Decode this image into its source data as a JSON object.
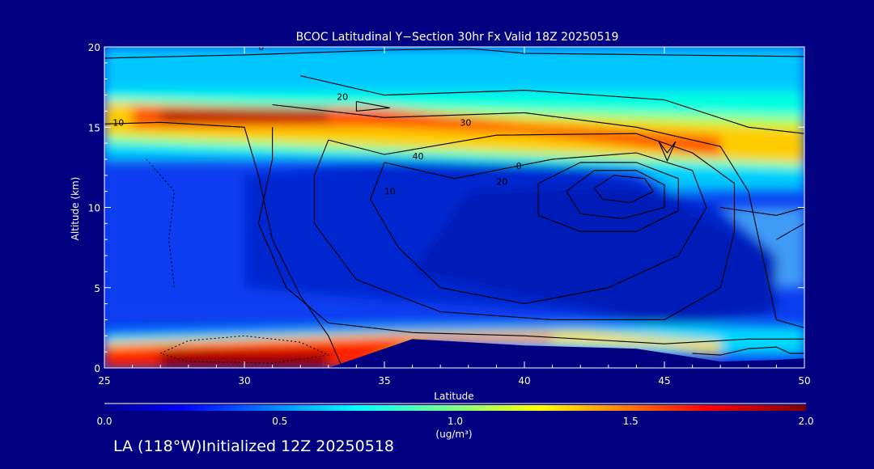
{
  "chart_data": {
    "type": "heatmap",
    "title": "BCOC Latitudinal Y−Section 30hr  Fx Valid 18Z 20250519",
    "xlabel": "Latitude",
    "ylabel": "Altitude (km)",
    "xlim": [
      25,
      50
    ],
    "ylim": [
      0,
      20
    ],
    "x_ticks": [
      25,
      30,
      35,
      40,
      45,
      50
    ],
    "y_ticks": [
      0,
      5,
      10,
      15,
      20
    ],
    "colorbar": {
      "range": [
        0.0,
        2.0
      ],
      "tick_labels": [
        "0.0",
        "0.5",
        "1.0",
        "1.5",
        "2.0"
      ],
      "unit": "(ug/m³)",
      "colormap": "jet"
    },
    "features": {
      "upper_plume": {
        "peak_altitude_km": 15.5,
        "peak_lat_range": [
          27,
          35
        ],
        "max_value": 2.0
      },
      "surface_plume": {
        "peak_altitude_km": 0.8,
        "lat_range": [
          25,
          34
        ],
        "max_value": 2.0
      },
      "mid_troposphere_min": {
        "lat_range": [
          30,
          48
        ],
        "alt_range_km": [
          3,
          13
        ],
        "value": 0.2
      }
    },
    "contours": {
      "variable": "wind speed",
      "labels": [
        "0",
        "10",
        "20",
        "30",
        "40",
        "0",
        "20",
        "10"
      ],
      "jet_core": {
        "lat": 43.5,
        "alt_km": 11.5,
        "max_value": 45
      }
    },
    "terrain": {
      "lat": [
        33,
        36,
        40,
        44,
        45.5,
        47,
        49,
        50
      ],
      "top_km": [
        0,
        1.8,
        1.4,
        1.2,
        0.8,
        0.4,
        0.5,
        0.6
      ]
    }
  },
  "footer": "LA (118°W)Initialized 12Z 20250518",
  "colors": {
    "background": "#000080",
    "text": "#ffffff",
    "terrain": "#000080",
    "contour": "#000000"
  }
}
